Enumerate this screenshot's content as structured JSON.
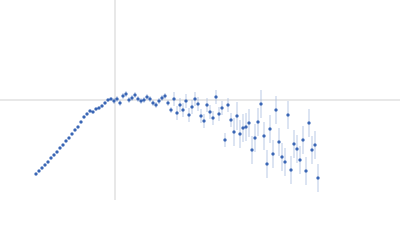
{
  "chart_data": {
    "type": "scatter",
    "xlim": [
      0,
      400
    ],
    "ylim": [
      0,
      200
    ],
    "reference_lines": {
      "x": 115,
      "y": 100,
      "color": "#d0d0d0"
    },
    "series": [
      {
        "color": "#3a66b5",
        "error_color": "#a9bde0",
        "x": [
          36,
          39,
          42,
          45,
          48,
          51,
          54,
          57,
          60,
          63,
          66,
          69,
          72,
          75,
          78,
          81,
          84,
          87,
          90,
          93,
          96,
          99,
          102,
          105,
          108,
          111,
          114,
          117,
          120,
          123,
          126,
          129,
          132,
          135,
          138,
          141,
          144,
          147,
          150,
          153,
          156,
          159,
          162,
          165,
          168,
          171,
          174,
          177,
          180,
          183,
          186,
          189,
          192,
          195,
          198,
          201,
          204,
          207,
          210,
          213,
          216,
          219,
          222,
          225,
          228,
          231,
          234,
          237,
          240,
          243,
          246,
          249,
          252,
          255,
          258,
          261,
          264,
          267,
          270,
          273,
          276,
          279,
          282,
          285,
          288,
          291,
          294,
          297,
          300,
          303,
          306,
          309,
          312,
          315,
          318
        ],
        "values": [
          26,
          29,
          32,
          35,
          38,
          42,
          45,
          48,
          52,
          55,
          59,
          62,
          66,
          70,
          73,
          78,
          83,
          86,
          89,
          88,
          91,
          92,
          94,
          97,
          100,
          101,
          99,
          101,
          97,
          104,
          106,
          100,
          102,
          105,
          101,
          99,
          100,
          103,
          101,
          97,
          95,
          99,
          102,
          104,
          97,
          90,
          101,
          87,
          95,
          90,
          99,
          85,
          93,
          101,
          96,
          84,
          79,
          95,
          88,
          82,
          103,
          86,
          92,
          60,
          95,
          80,
          68,
          84,
          66,
          72,
          73,
          77,
          50,
          62,
          78,
          96,
          64,
          36,
          71,
          46,
          90,
          58,
          43,
          38,
          85,
          30,
          56,
          51,
          40,
          60,
          29,
          77,
          50,
          55,
          22
        ],
        "errors": [
          1,
          1,
          1,
          1,
          1,
          1,
          1,
          1,
          1,
          1,
          1,
          1,
          1,
          1,
          1,
          1,
          1,
          1,
          1,
          1,
          1,
          1,
          1,
          1,
          1,
          1,
          3,
          3,
          3,
          3,
          3,
          3,
          3,
          3,
          3,
          3,
          3,
          3,
          3,
          3,
          3,
          3,
          3,
          3,
          3,
          3,
          7,
          7,
          7,
          7,
          7,
          7,
          7,
          7,
          7,
          7,
          7,
          7,
          7,
          7,
          7,
          7,
          7,
          7,
          7,
          7,
          14,
          14,
          14,
          14,
          14,
          14,
          14,
          14,
          14,
          14,
          14,
          14,
          14,
          14,
          14,
          14,
          14,
          14,
          14,
          14,
          14,
          14,
          14,
          14,
          14,
          14,
          14,
          14,
          14
        ]
      }
    ]
  }
}
